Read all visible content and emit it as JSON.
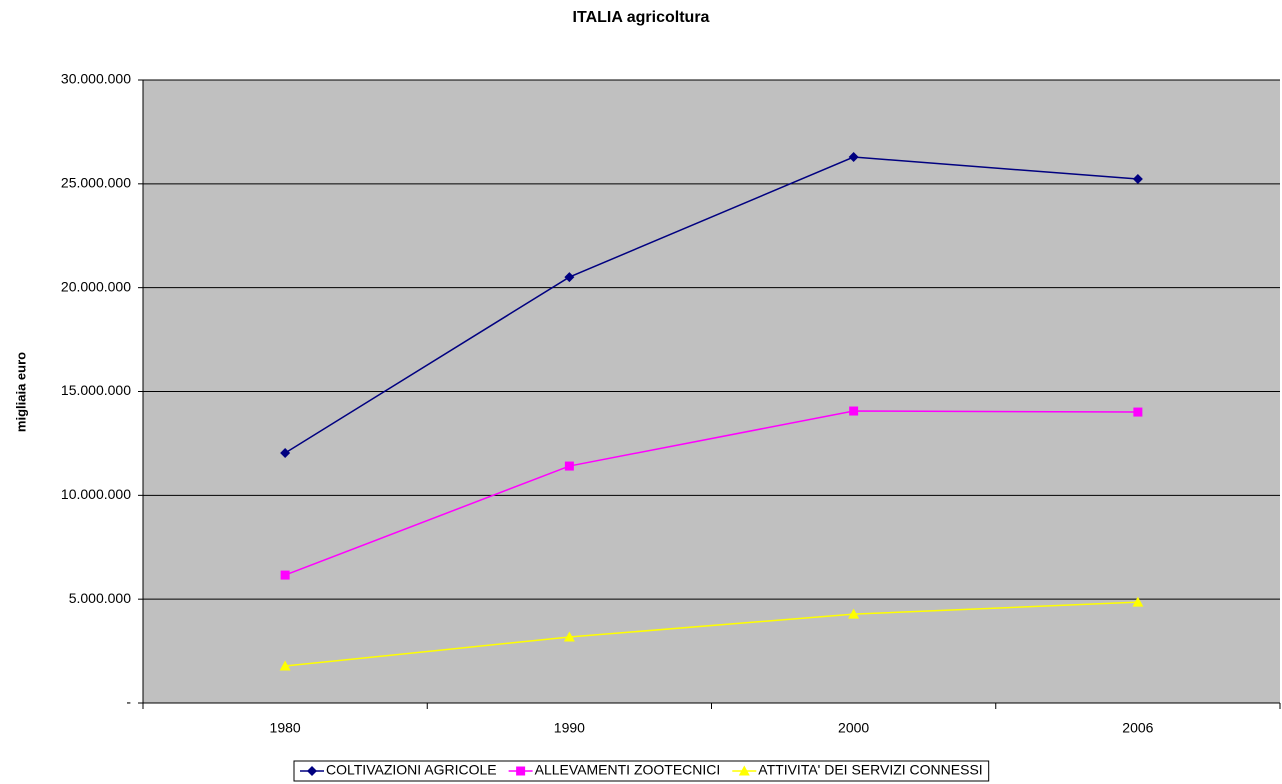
{
  "chart_data": {
    "type": "line",
    "title": "ITALIA agricoltura",
    "y_label": "migliaia euro",
    "categories": [
      "1980",
      "1990",
      "2000",
      "2006"
    ],
    "series": [
      {
        "name": "COLTIVAZIONI AGRICOLE",
        "color": "#000080",
        "marker": "diamond",
        "values": [
          12040000,
          20510000,
          26290000,
          25230000
        ]
      },
      {
        "name": "ALLEVAMENTI ZOOTECNICI",
        "color": "#ff00ff",
        "marker": "square",
        "values": [
          6160000,
          11410000,
          14060000,
          14010000
        ]
      },
      {
        "name": "ATTIVITA' DEI SERVIZI CONNESSI",
        "color": "#ffff00",
        "marker": "triangle",
        "values": [
          1780000,
          3180000,
          4280000,
          4860000
        ]
      }
    ],
    "ylim": [
      0,
      30000000
    ],
    "yticks": [
      {
        "value": 0,
        "label": "-"
      },
      {
        "value": 5000000,
        "label": "5.000.000"
      },
      {
        "value": 10000000,
        "label": "10.000.000"
      },
      {
        "value": 15000000,
        "label": "15.000.000"
      },
      {
        "value": 20000000,
        "label": "20.000.000"
      },
      {
        "value": 25000000,
        "label": "25.000.000"
      },
      {
        "value": 30000000,
        "label": "30.000.000"
      }
    ],
    "grid": true,
    "legend": "bottom",
    "plot_background": "#c0c0c0"
  }
}
